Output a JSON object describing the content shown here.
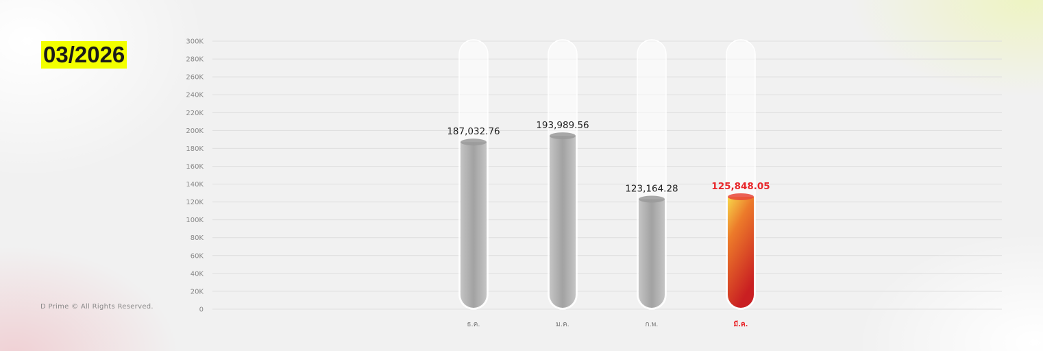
{
  "header": {
    "period": "03/2026"
  },
  "footer": {
    "copyright": "D Prime © All Rights Reserved."
  },
  "colors": {
    "highlight": "#e8262a",
    "period_bg": "#f2ff00",
    "bar": "#b0b0b0"
  },
  "chart_data": {
    "type": "bar",
    "categories": [
      "ธ.ค.",
      "ม.ค.",
      "ก.พ.",
      "มี.ค."
    ],
    "values": [
      187032.76,
      193989.56,
      123164.28,
      125848.05
    ],
    "value_labels": [
      "187,032.76",
      "193,989.56",
      "123,164.28",
      "125,848.05"
    ],
    "highlight_index": 3,
    "ylim": [
      0,
      300000
    ],
    "yticks": [
      0,
      20000,
      40000,
      60000,
      80000,
      100000,
      120000,
      140000,
      160000,
      180000,
      200000,
      220000,
      240000,
      260000,
      280000,
      300000
    ],
    "ytick_labels": [
      "0",
      "20K",
      "40K",
      "60K",
      "80K",
      "100K",
      "120K",
      "140K",
      "160K",
      "180K",
      "200K",
      "220K",
      "240K",
      "260K",
      "280K",
      "300K"
    ],
    "grid": true,
    "style": "test-tube"
  }
}
